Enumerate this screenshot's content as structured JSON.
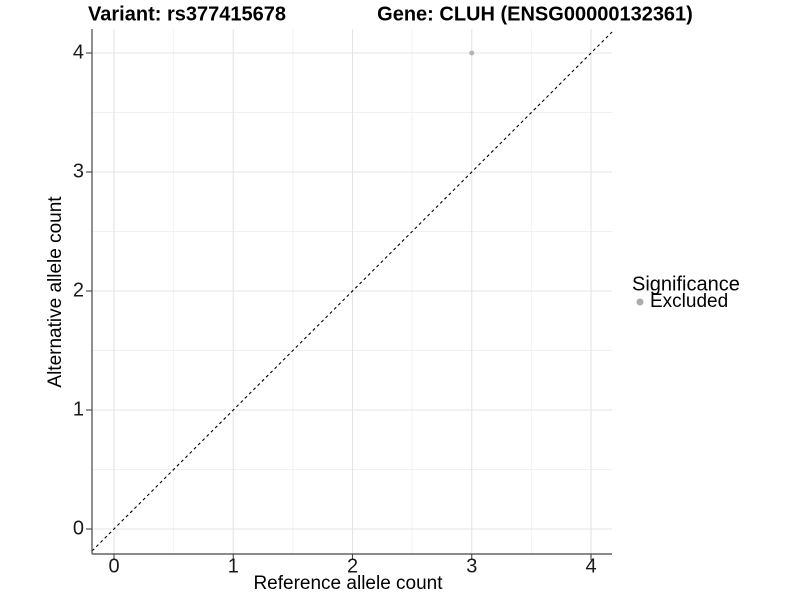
{
  "titles": {
    "variant": "Variant: rs377415678",
    "gene": "Gene: CLUH (ENSG00000132361)"
  },
  "chart_data": {
    "type": "scatter",
    "title_left": "Variant: rs377415678",
    "title_right": "Gene: CLUH (ENSG00000132361)",
    "xlabel": "Reference allele count",
    "ylabel": "Alternative allele count",
    "xlim": [
      -0.185,
      4.176
    ],
    "ylim": [
      -0.21,
      4.21
    ],
    "x_ticks": [
      0,
      1,
      2,
      3,
      4
    ],
    "y_ticks": [
      0,
      1,
      2,
      3,
      4
    ],
    "x_tick_labels": [
      "0",
      "1",
      "2",
      "3",
      "4"
    ],
    "y_tick_labels": [
      "0",
      "1",
      "2",
      "3",
      "4"
    ],
    "x_minor_ticks": [
      0.5,
      1.5,
      2.5,
      3.5
    ],
    "y_minor_ticks": [
      0.5,
      1.5,
      2.5,
      3.5
    ],
    "grid": true,
    "series": [
      {
        "name": "Excluded",
        "color": "#b5b5b5",
        "points": [
          {
            "x": 3,
            "y": 4
          }
        ]
      }
    ],
    "reference_line": {
      "equation": "y = x",
      "style": "dashed",
      "color": "#000000"
    },
    "legend": {
      "title": "Significance",
      "position": "right",
      "entries": [
        {
          "label": "Excluded",
          "marker": "circle",
          "color": "#acacac"
        }
      ]
    }
  },
  "colors": {
    "background": "#ffffff",
    "grid_major": "#e4e4e4",
    "grid_minor": "#f1f1f1",
    "axis": "#454545",
    "point": "#b5b5b5",
    "dashed_line": "#000000"
  }
}
